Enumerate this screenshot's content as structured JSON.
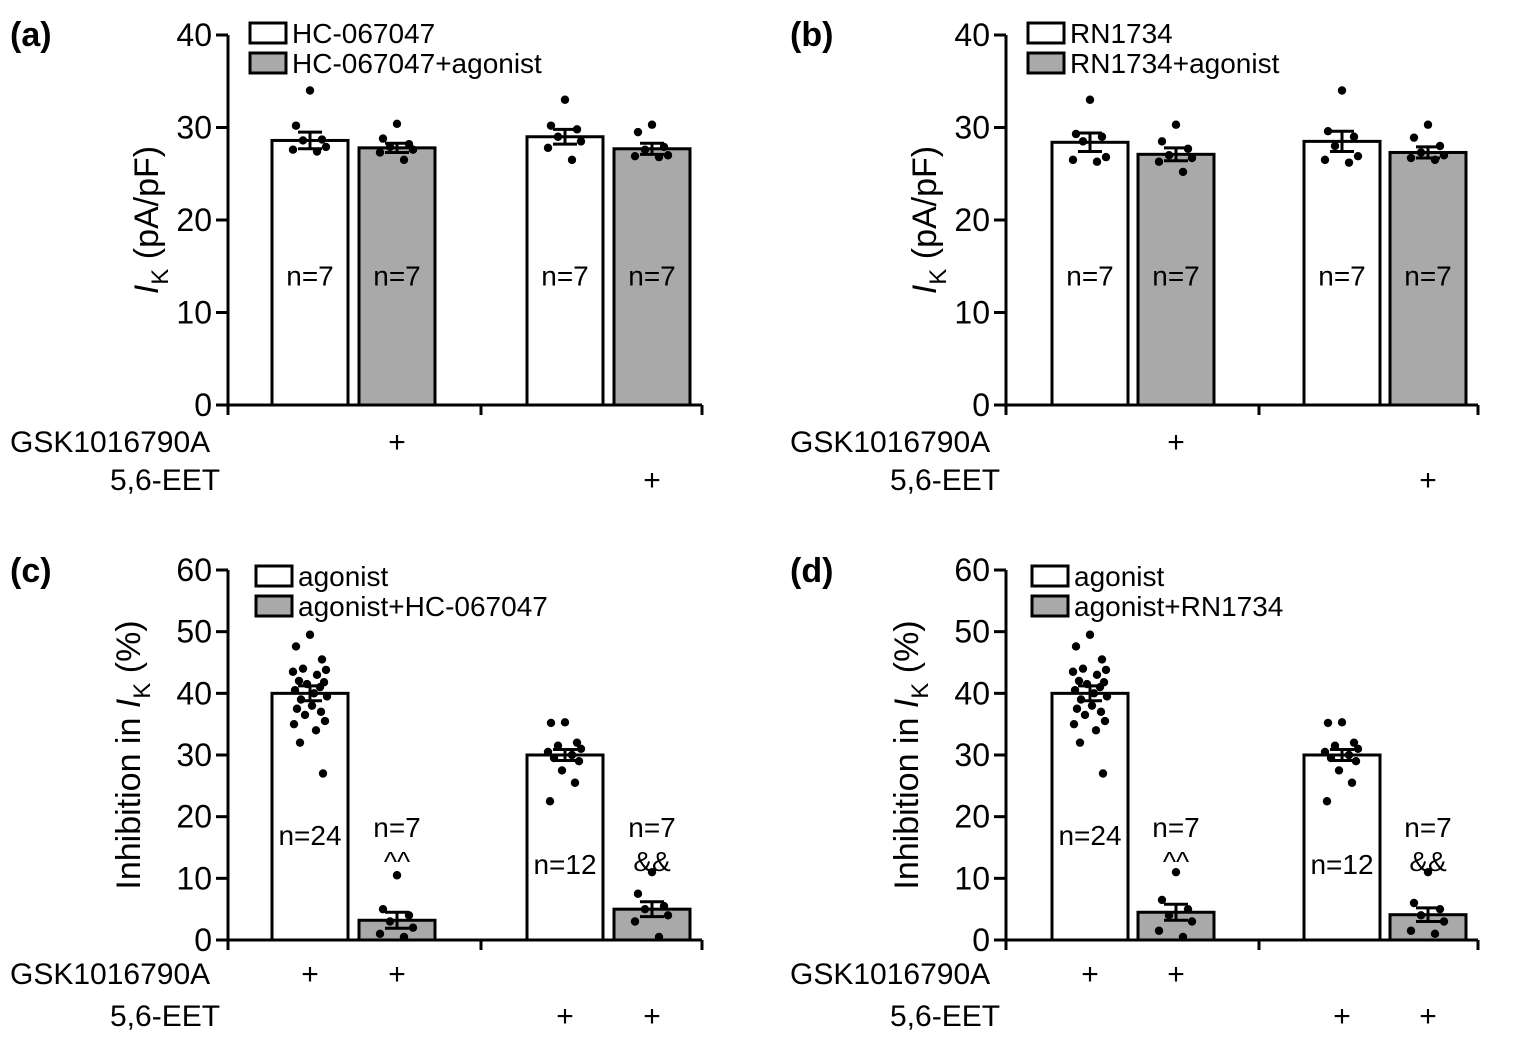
{
  "colors": {
    "filled": "#a9a9a9",
    "empty": "#ffffff",
    "stroke": "#000000",
    "dot": "#000000"
  },
  "row_labels": [
    "GSK1016790A",
    "5,6-EET"
  ],
  "chart_data": [
    {
      "type": "bar",
      "panel": "(a)",
      "ylabel_main": "I",
      "ylabel_sub": "K",
      "ylabel_unit": " (pA/pF)",
      "ylim": [
        0,
        40
      ],
      "yticks": [
        0,
        10,
        20,
        30,
        40
      ],
      "legend": [
        "HC-067047",
        "HC-067047+agonist"
      ],
      "bars": [
        {
          "value": 28.6,
          "sem": 0.9,
          "filled": false,
          "n": "n=7",
          "sig": "",
          "points": [
            34.0,
            30.2,
            28.7,
            28.6,
            27.9,
            27.6,
            27.4
          ]
        },
        {
          "value": 27.8,
          "sem": 0.5,
          "filled": true,
          "n": "n=7",
          "sig": "",
          "points": [
            30.4,
            28.8,
            28.2,
            27.9,
            27.6,
            27.3,
            26.5
          ]
        },
        {
          "value": 29.0,
          "sem": 0.8,
          "filled": false,
          "n": "n=7",
          "sig": "",
          "points": [
            33.0,
            30.2,
            29.8,
            29.0,
            28.5,
            27.8,
            26.5
          ]
        },
        {
          "value": 27.7,
          "sem": 0.6,
          "filled": true,
          "n": "n=7",
          "sig": "",
          "points": [
            30.3,
            29.5,
            27.9,
            27.6,
            27.0,
            26.9,
            26.8
          ]
        }
      ],
      "conditions": [
        [
          "",
          "+",
          "",
          ""
        ],
        [
          "",
          "",
          "",
          "+"
        ]
      ]
    },
    {
      "type": "bar",
      "panel": "(b)",
      "ylabel_main": "I",
      "ylabel_sub": "K",
      "ylabel_unit": " (pA/pF)",
      "ylim": [
        0,
        40
      ],
      "yticks": [
        0,
        10,
        20,
        30,
        40
      ],
      "legend": [
        "RN1734",
        "RN1734+agonist"
      ],
      "bars": [
        {
          "value": 28.4,
          "sem": 1.0,
          "filled": false,
          "n": "n=7",
          "sig": "",
          "points": [
            33.0,
            29.3,
            29.0,
            28.5,
            26.8,
            26.5,
            26.3
          ]
        },
        {
          "value": 27.1,
          "sem": 0.7,
          "filled": true,
          "n": "n=7",
          "sig": "",
          "points": [
            30.3,
            28.5,
            27.7,
            27.0,
            26.7,
            26.3,
            25.2
          ]
        },
        {
          "value": 28.5,
          "sem": 1.1,
          "filled": false,
          "n": "n=7",
          "sig": "",
          "points": [
            34.0,
            29.6,
            29.0,
            28.0,
            26.9,
            26.5,
            26.2
          ]
        },
        {
          "value": 27.3,
          "sem": 0.6,
          "filled": true,
          "n": "n=7",
          "sig": "",
          "points": [
            30.3,
            28.9,
            28.0,
            27.3,
            27.0,
            26.7,
            26.5
          ]
        }
      ],
      "conditions": [
        [
          "",
          "+",
          "",
          ""
        ],
        [
          "",
          "",
          "",
          "+"
        ]
      ]
    },
    {
      "type": "bar",
      "panel": "(c)",
      "ylabel_main": "Inhibition in I",
      "ylabel_sub": "K",
      "ylabel_unit": " (%)",
      "ylim": [
        0,
        60
      ],
      "yticks": [
        0,
        10,
        20,
        30,
        40,
        50,
        60
      ],
      "legend": [
        "agonist",
        "agonist+HC-067047"
      ],
      "bars": [
        {
          "value": 40.0,
          "sem": 1.2,
          "filled": false,
          "n": "n=24",
          "sig": "",
          "points": [
            49.5,
            47.6,
            45.5,
            44.0,
            43.8,
            43.5,
            43.0,
            42.0,
            41.8,
            41.5,
            41.0,
            40.5,
            40.0,
            39.5,
            39.0,
            38.0,
            37.5,
            37.0,
            36.5,
            35.5,
            35.0,
            34.0,
            32.0,
            27.0
          ]
        },
        {
          "value": 3.2,
          "sem": 1.3,
          "filled": true,
          "n": "n=7",
          "sig": "^^",
          "points": [
            10.5,
            5.0,
            4.0,
            3.0,
            2.0,
            1.0,
            0.5
          ]
        },
        {
          "value": 30.0,
          "sem": 0.9,
          "filled": false,
          "n": "n=12",
          "sig": "",
          "points": [
            35.3,
            35.2,
            32.0,
            31.5,
            31.0,
            30.5,
            30.0,
            29.5,
            29.0,
            27.5,
            25.5,
            22.5
          ]
        },
        {
          "value": 5.0,
          "sem": 1.2,
          "filled": true,
          "n": "n=7",
          "sig": "&&",
          "points": [
            11.0,
            7.5,
            5.5,
            5.0,
            4.0,
            3.0,
            0.5
          ]
        }
      ],
      "conditions": [
        [
          "+",
          "+",
          "",
          ""
        ],
        [
          "",
          "",
          "+",
          "+"
        ]
      ]
    },
    {
      "type": "bar",
      "panel": "(d)",
      "ylabel_main": "Inhibition in I",
      "ylabel_sub": "K",
      "ylabel_unit": " (%)",
      "ylim": [
        0,
        60
      ],
      "yticks": [
        0,
        10,
        20,
        30,
        40,
        50,
        60
      ],
      "legend": [
        "agonist",
        "agonist+RN1734"
      ],
      "bars": [
        {
          "value": 40.0,
          "sem": 1.2,
          "filled": false,
          "n": "n=24",
          "sig": "",
          "points": [
            49.5,
            47.6,
            45.5,
            44.0,
            43.8,
            43.5,
            43.0,
            42.0,
            41.8,
            41.5,
            41.0,
            40.5,
            40.0,
            39.5,
            39.0,
            38.0,
            37.5,
            37.0,
            36.5,
            35.5,
            35.0,
            34.0,
            32.0,
            27.0
          ]
        },
        {
          "value": 4.5,
          "sem": 1.3,
          "filled": true,
          "n": "n=7",
          "sig": "^^",
          "points": [
            11.0,
            6.5,
            5.0,
            4.0,
            3.0,
            1.5,
            0.5
          ]
        },
        {
          "value": 30.0,
          "sem": 0.9,
          "filled": false,
          "n": "n=12",
          "sig": "",
          "points": [
            35.3,
            35.2,
            32.0,
            31.5,
            31.0,
            30.5,
            30.0,
            29.5,
            29.0,
            27.5,
            25.5,
            22.5
          ]
        },
        {
          "value": 4.1,
          "sem": 1.1,
          "filled": true,
          "n": "n=7",
          "sig": "&&",
          "points": [
            11.0,
            6.0,
            5.0,
            4.0,
            3.0,
            1.5,
            1.0
          ]
        }
      ],
      "conditions": [
        [
          "+",
          "+",
          "",
          ""
        ],
        [
          "",
          "",
          "+",
          "+"
        ]
      ]
    }
  ]
}
